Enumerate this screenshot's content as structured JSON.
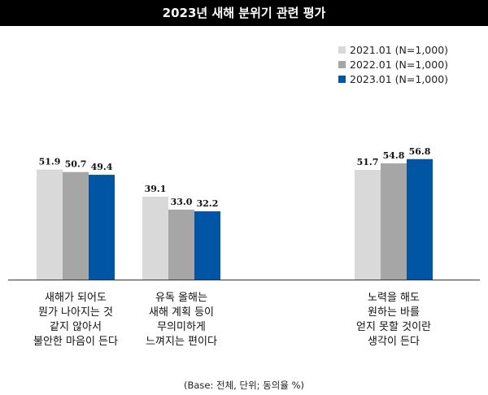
{
  "title": "2023년 새해 분위기 관련 평가",
  "footnote": "(Base: 전체, 단위; 동의율 %)",
  "chart_data": {
    "type": "bar",
    "categories": [
      [
        "새해가 되어도",
        "뭔가 나아지는 것",
        "같지 않아서",
        "불안한 마음이 든다"
      ],
      [
        "유독 올해는",
        "새해 계획 등이",
        "무의미하게",
        "느껴지는 편이다"
      ],
      [
        "노력을 해도",
        "원하는 바를",
        "얻지 못할 것이란",
        "생각이 든다"
      ]
    ],
    "series": [
      {
        "name": "2021.01 (N=1,000)",
        "color": "#d9d9d9",
        "values": [
          51.9,
          39.1,
          51.7
        ]
      },
      {
        "name": "2022.01 (N=1,000)",
        "color": "#a6a6a6",
        "values": [
          50.7,
          33.0,
          54.8
        ]
      },
      {
        "name": "2023.01 (N=1,000)",
        "color": "#0055a5",
        "values": [
          49.4,
          32.2,
          56.8
        ]
      }
    ],
    "ylim": [
      0,
      100
    ],
    "grid": false,
    "legend": "top-right"
  }
}
